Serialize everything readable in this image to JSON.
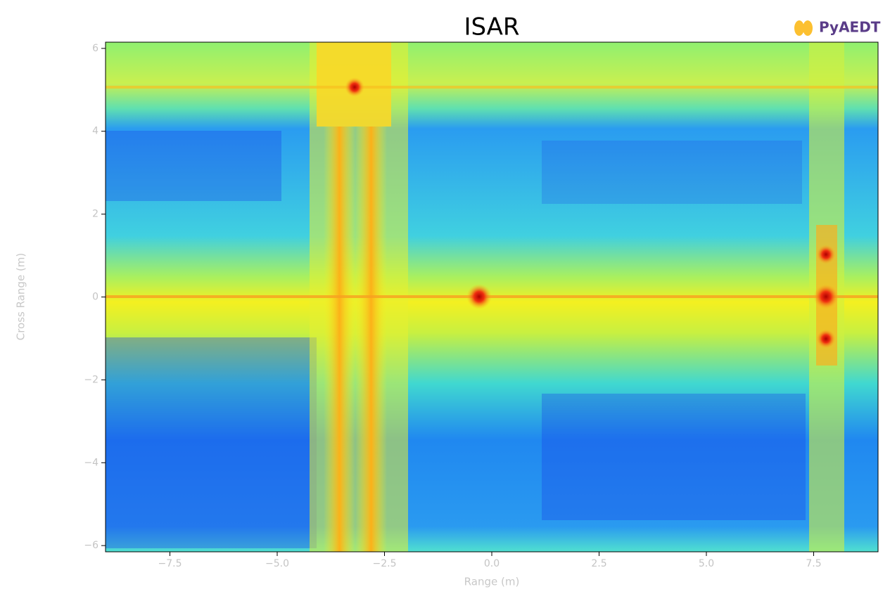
{
  "chart_data": {
    "type": "heatmap",
    "title": "ISAR",
    "logo": "PyAEDT",
    "xlabel": "Range (m)",
    "ylabel": "Cross Range (m)",
    "xlim": [
      -9,
      9
    ],
    "ylim": [
      -6.15,
      6.15
    ],
    "xticks": [
      {
        "value": -7.5,
        "label": "−7.5"
      },
      {
        "value": -5,
        "label": "−5.0"
      },
      {
        "value": -2.5,
        "label": "−2.5"
      },
      {
        "value": 0,
        "label": "0.0"
      },
      2.5,
      {
        "value": 5,
        "label": "5.0"
      },
      7.5
    ],
    "yticks": [
      {
        "value": -6,
        "label": "−6"
      },
      {
        "value": -4,
        "label": "−4"
      },
      {
        "value": -2,
        "label": "−2"
      },
      0,
      2,
      4,
      6
    ]
  }
}
